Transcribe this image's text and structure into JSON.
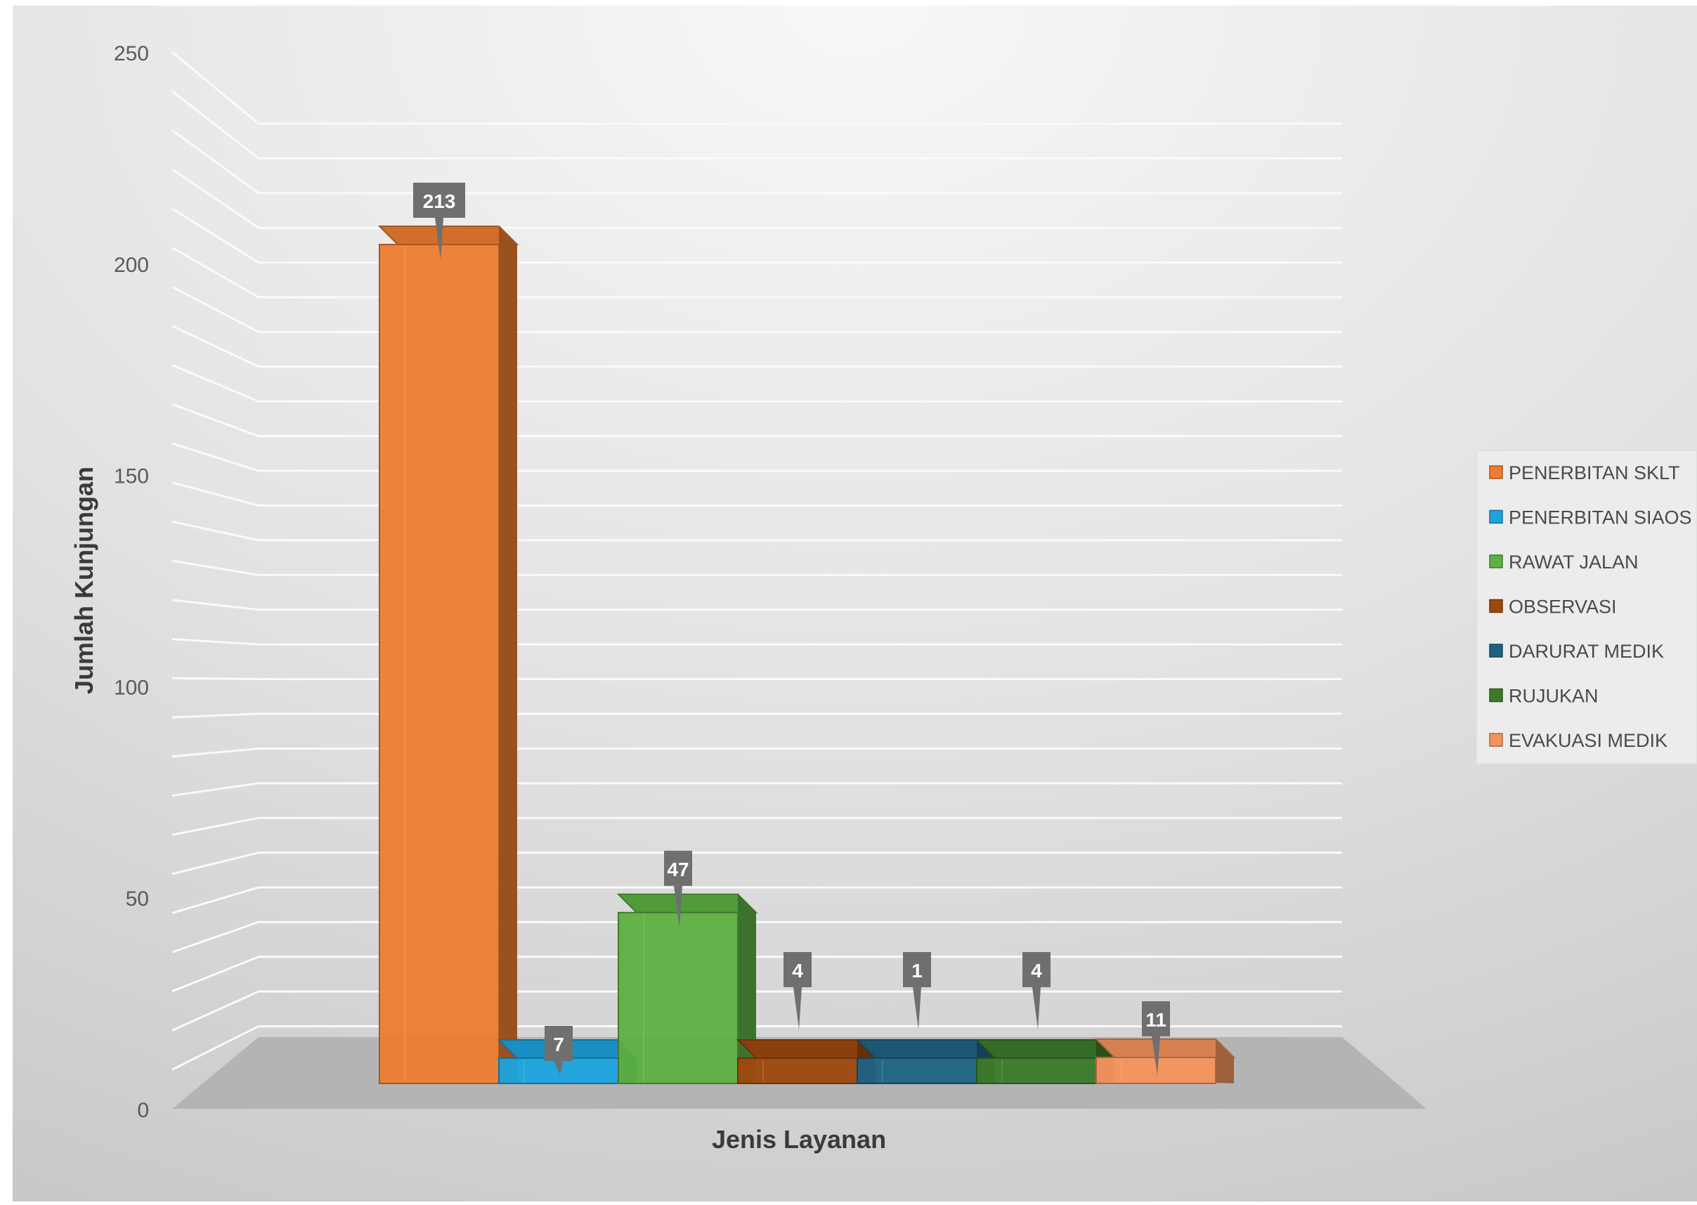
{
  "chart_data": {
    "type": "bar",
    "title": "",
    "xlabel": "Jenis Layanan",
    "ylabel": "Jumlah Kunjungan",
    "ylim": [
      0,
      250
    ],
    "yticks": [
      0,
      50,
      100,
      150,
      200,
      250
    ],
    "grid": true,
    "three_d": true,
    "legend_position": "right",
    "categories": [
      "PENERBITAN SKLT",
      "PENERBITAN SIAOS",
      "RAWAT JALAN",
      "OBSERVASI",
      "DARURAT MEDIK",
      "RUJUKAN",
      "EVAKUASI MEDIK"
    ],
    "values": [
      213,
      7,
      47,
      4,
      1,
      4,
      11
    ],
    "data_labels": [
      "213",
      "7",
      "47",
      "4",
      "1",
      "4",
      "11"
    ],
    "colors": [
      "#ED7D31",
      "#1CA3DE",
      "#5DB042",
      "#9E480E",
      "#1F6384",
      "#3B7A2A",
      "#F4935C"
    ],
    "legend": [
      "PENERBITAN SKLT",
      "PENERBITAN SIAOS",
      "RAWAT JALAN",
      "OBSERVASI",
      "DARURAT MEDIK",
      "RUJUKAN",
      "EVAKUASI MEDIK"
    ]
  }
}
